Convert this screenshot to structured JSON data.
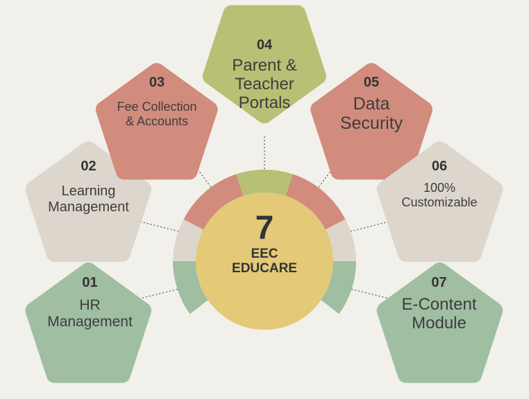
{
  "center": {
    "count": "7",
    "line1": "EEC",
    "line2": "EDUCARE"
  },
  "items": [
    {
      "num": "01",
      "line1": "HR",
      "line2": "Management",
      "color": "#9fbea2"
    },
    {
      "num": "02",
      "line1": "Learning",
      "line2": "Management",
      "color": "#ddd6cc"
    },
    {
      "num": "03",
      "line1": "Fee Collection",
      "line2": "& Accounts",
      "color": "#d18c7d"
    },
    {
      "num": "04",
      "line1": "Parent &",
      "line2": "Teacher",
      "line3": "Portals",
      "color": "#b7c074"
    },
    {
      "num": "05",
      "line1": "Data",
      "line2": "Security",
      "color": "#d18c7d"
    },
    {
      "num": "06",
      "line1": "100%",
      "line2": "Customizable",
      "color": "#ddd6cc"
    },
    {
      "num": "07",
      "line1": "E-Content",
      "line2": "Module",
      "color": "#9fbea2"
    }
  ],
  "colors": {
    "background": "#f1f0ea",
    "center": "#e3c978",
    "green": "#9fbea2",
    "beige": "#ddd6cc",
    "red": "#d18c7d",
    "olive": "#b7c074"
  }
}
